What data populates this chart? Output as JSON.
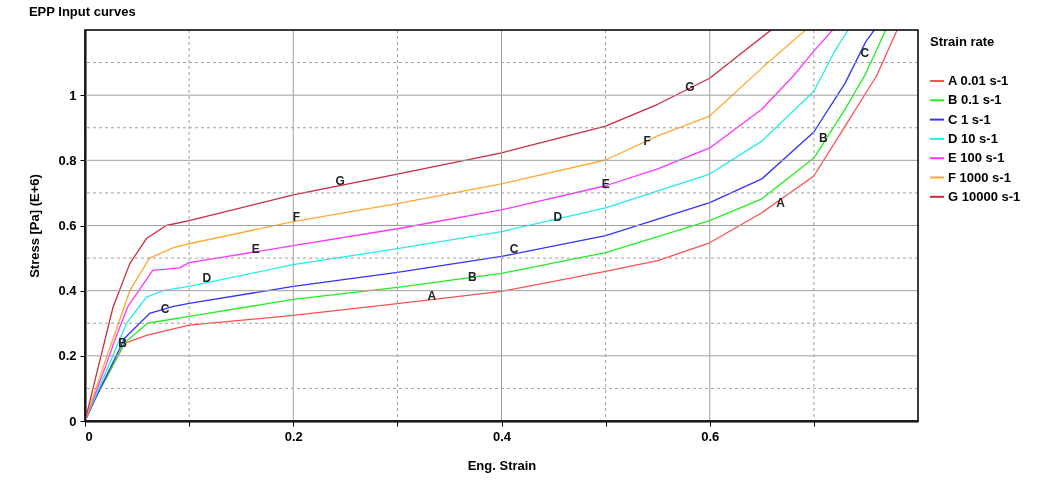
{
  "chart_data": {
    "type": "line",
    "title": "EPP Input curves",
    "xlabel": "Eng. Strain",
    "ylabel": "Stress [Pa] (E+6)",
    "legend_title": "Strain rate",
    "xlim": [
      0,
      0.8
    ],
    "ylim": [
      0,
      1.2
    ],
    "xticks": [
      0,
      {
        "value": 0.1,
        "label": null
      },
      0.2,
      {
        "value": 0.3,
        "label": null
      },
      0.4,
      {
        "value": 0.5,
        "label": null
      },
      0.6,
      {
        "value": 0.7,
        "label": null
      }
    ],
    "yticks": [
      0,
      {
        "value": 0.1,
        "label": null
      },
      0.2,
      {
        "value": 0.3,
        "label": null
      },
      0.4,
      {
        "value": 0.5,
        "label": null
      },
      0.6,
      {
        "value": 0.7,
        "label": null
      },
      0.8,
      {
        "value": 0.9,
        "label": null
      },
      1,
      {
        "value": 1.1,
        "label": null
      }
    ],
    "grid": true,
    "legend": "right",
    "marker": "none",
    "line_style": "solid",
    "series": [
      {
        "name": "A 0.01 s-1",
        "color": "#ff5050",
        "x": [
          0,
          0.01,
          0.02,
          0.03,
          0.038,
          0.059,
          0.1,
          0.2,
          0.3,
          0.4,
          0.5,
          0.55,
          0.6,
          0.65,
          0.7,
          0.73,
          0.76,
          0.78
        ],
        "values": [
          0,
          0.07,
          0.13,
          0.19,
          0.238,
          0.263,
          0.294,
          0.324,
          0.36,
          0.398,
          0.459,
          0.492,
          0.547,
          0.639,
          0.752,
          0.905,
          1.058,
          1.2
        ]
      },
      {
        "name": "B 0.1 s-1",
        "color": "#22ee22",
        "x": [
          0,
          0.01,
          0.02,
          0.03,
          0.038,
          0.06,
          0.1,
          0.2,
          0.3,
          0.4,
          0.5,
          0.6,
          0.65,
          0.7,
          0.73,
          0.75,
          0.769
        ],
        "values": [
          0,
          0.07,
          0.13,
          0.19,
          0.24,
          0.3,
          0.321,
          0.373,
          0.41,
          0.453,
          0.517,
          0.615,
          0.682,
          0.807,
          0.957,
          1.067,
          1.2
        ]
      },
      {
        "name": "C 1 s-1",
        "color": "#3333ff",
        "x": [
          0,
          0.01,
          0.02,
          0.03,
          0.038,
          0.062,
          0.085,
          0.1,
          0.2,
          0.3,
          0.4,
          0.5,
          0.6,
          0.65,
          0.7,
          0.73,
          0.75,
          0.758
        ],
        "values": [
          0,
          0.07,
          0.135,
          0.2,
          0.254,
          0.33,
          0.352,
          0.361,
          0.413,
          0.456,
          0.505,
          0.569,
          0.67,
          0.743,
          0.887,
          1.037,
          1.165,
          1.2
        ]
      },
      {
        "name": "D 10 s-1",
        "color": "#22eeee",
        "x": [
          0,
          0.01,
          0.02,
          0.03,
          0.04,
          0.059,
          0.075,
          0.1,
          0.2,
          0.3,
          0.4,
          0.5,
          0.6,
          0.65,
          0.7,
          0.72,
          0.733
        ],
        "values": [
          0,
          0.075,
          0.15,
          0.225,
          0.3,
          0.38,
          0.4,
          0.413,
          0.48,
          0.529,
          0.581,
          0.654,
          0.758,
          0.859,
          1.012,
          1.135,
          1.2
        ]
      },
      {
        "name": "E 100 s-1",
        "color": "#ff33ff",
        "x": [
          0,
          0.01,
          0.02,
          0.03,
          0.041,
          0.065,
          0.091,
          0.1,
          0.2,
          0.3,
          0.4,
          0.5,
          0.55,
          0.6,
          0.65,
          0.68,
          0.7,
          0.718
        ],
        "values": [
          0,
          0.085,
          0.17,
          0.26,
          0.35,
          0.462,
          0.47,
          0.486,
          0.538,
          0.59,
          0.648,
          0.722,
          0.774,
          0.838,
          0.957,
          1.058,
          1.135,
          1.2
        ]
      },
      {
        "name": "F 1000 s-1",
        "color": "#ffaa33",
        "x": [
          0,
          0.01,
          0.02,
          0.03,
          0.043,
          0.062,
          0.085,
          0.1,
          0.2,
          0.3,
          0.4,
          0.5,
          0.55,
          0.6,
          0.65,
          0.692
        ],
        "values": [
          0,
          0.095,
          0.19,
          0.28,
          0.4,
          0.5,
          0.532,
          0.544,
          0.612,
          0.667,
          0.728,
          0.801,
          0.875,
          0.936,
          1.083,
          1.2
        ]
      },
      {
        "name": "G 10000 s-1",
        "color": "#cc2a40",
        "x": [
          0,
          0.01,
          0.02,
          0.027,
          0.043,
          0.059,
          0.078,
          0.1,
          0.2,
          0.3,
          0.4,
          0.5,
          0.55,
          0.6,
          0.63,
          0.659
        ],
        "values": [
          0,
          0.13,
          0.26,
          0.35,
          0.483,
          0.56,
          0.6,
          0.615,
          0.694,
          0.758,
          0.823,
          0.905,
          0.972,
          1.052,
          1.128,
          1.2
        ]
      }
    ],
    "annotations": [
      {
        "text": "A",
        "x": 0.333,
        "y": 0.385
      },
      {
        "text": "A",
        "x": 0.668,
        "y": 0.67
      },
      {
        "text": "B",
        "x": 0.036,
        "y": 0.239
      },
      {
        "text": "B",
        "x": 0.372,
        "y": 0.441
      },
      {
        "text": "B",
        "x": 0.709,
        "y": 0.869
      },
      {
        "text": "C",
        "x": 0.077,
        "y": 0.344
      },
      {
        "text": "C",
        "x": 0.412,
        "y": 0.529
      },
      {
        "text": "C",
        "x": 0.749,
        "y": 1.128
      },
      {
        "text": "D",
        "x": 0.117,
        "y": 0.44
      },
      {
        "text": "D",
        "x": 0.454,
        "y": 0.627
      },
      {
        "text": "E",
        "x": 0.164,
        "y": 0.529
      },
      {
        "text": "E",
        "x": 0.5,
        "y": 0.728
      },
      {
        "text": "F",
        "x": 0.203,
        "y": 0.627
      },
      {
        "text": "F",
        "x": 0.54,
        "y": 0.859
      },
      {
        "text": "G",
        "x": 0.245,
        "y": 0.737
      },
      {
        "text": "G",
        "x": 0.581,
        "y": 1.024
      }
    ]
  }
}
